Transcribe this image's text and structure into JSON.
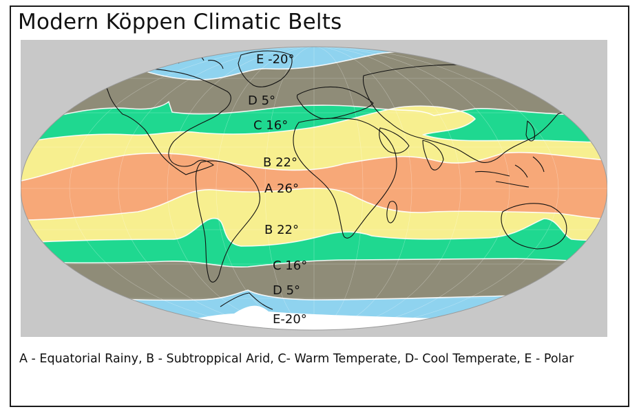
{
  "title": "Modern Köppen Climatic Belts",
  "legend": "A - Equatorial Rainy, B - Subtroppical Arid, C- Warm Temperate, D- Cool Temperate, E - Polar",
  "zones": [
    {
      "id": "E-north",
      "label": "E -20°",
      "color": "#8fd3ef"
    },
    {
      "id": "D-north",
      "label": "D 5°",
      "color": "#8f8c78"
    },
    {
      "id": "C-north",
      "label": "C 16°",
      "color": "#1fd890"
    },
    {
      "id": "B-north",
      "label": "B  22°",
      "color": "#f7ef8f"
    },
    {
      "id": "A",
      "label": "A  26°",
      "color": "#f7a878"
    },
    {
      "id": "B-south",
      "label": "B  22°",
      "color": "#f7ef8f"
    },
    {
      "id": "C-south",
      "label": "C 16°",
      "color": "#1fd890"
    },
    {
      "id": "D-south",
      "label": "D  5°",
      "color": "#8f8c78"
    },
    {
      "id": "E-south",
      "label": "E-20°",
      "color": "#8fd3ef"
    }
  ],
  "colors": {
    "ocean_corner": "#c8c8c8",
    "polar": "#8fd3ef",
    "ice": "#ffffff",
    "coast": "#111111"
  }
}
